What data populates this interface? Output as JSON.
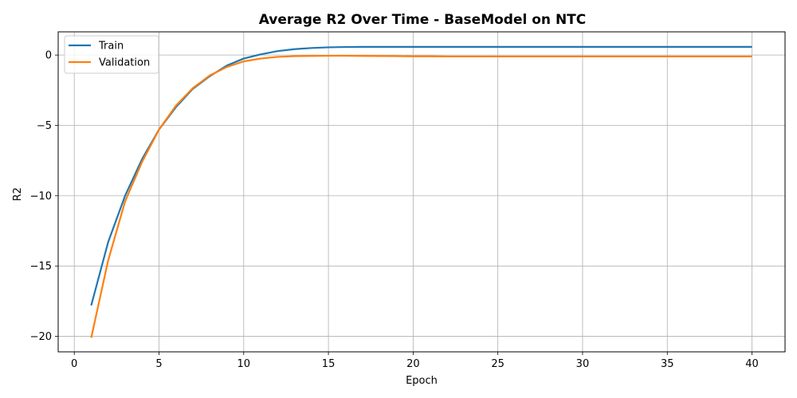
{
  "chart_data": {
    "type": "line",
    "title": "Average R2 Over Time - BaseModel on NTC",
    "xlabel": "Epoch",
    "ylabel": "R2",
    "xlim": [
      -0.95,
      41.95
    ],
    "ylim": [
      -21.1,
      1.65
    ],
    "xticks": [
      0,
      5,
      10,
      15,
      20,
      25,
      30,
      35,
      40
    ],
    "yticks": [
      -20,
      -15,
      -10,
      -5,
      0
    ],
    "grid": true,
    "legend_position": "top-left",
    "series": [
      {
        "name": "Train",
        "color": "#1f77b4",
        "x": [
          1,
          2,
          3,
          4,
          5,
          6,
          7,
          8,
          9,
          10,
          11,
          12,
          13,
          14,
          15,
          16,
          17,
          18,
          19,
          20,
          21,
          22,
          23,
          24,
          25,
          26,
          27,
          28,
          29,
          30,
          31,
          32,
          33,
          34,
          35,
          36,
          37,
          38,
          39,
          40
        ],
        "y": [
          -17.8,
          -13.3,
          -10.0,
          -7.4,
          -5.3,
          -3.7,
          -2.4,
          -1.5,
          -0.75,
          -0.25,
          0.05,
          0.28,
          0.42,
          0.5,
          0.55,
          0.57,
          0.58,
          0.58,
          0.58,
          0.58,
          0.58,
          0.58,
          0.58,
          0.58,
          0.58,
          0.58,
          0.58,
          0.58,
          0.58,
          0.58,
          0.58,
          0.58,
          0.58,
          0.58,
          0.58,
          0.58,
          0.58,
          0.58,
          0.58,
          0.58
        ]
      },
      {
        "name": "Validation",
        "color": "#ff7f0e",
        "x": [
          1,
          2,
          3,
          4,
          5,
          6,
          7,
          8,
          9,
          10,
          11,
          12,
          13,
          14,
          15,
          16,
          17,
          18,
          19,
          20,
          21,
          22,
          23,
          24,
          25,
          26,
          27,
          28,
          29,
          30,
          31,
          32,
          33,
          34,
          35,
          36,
          37,
          38,
          39,
          40
        ],
        "y": [
          -20.1,
          -14.6,
          -10.4,
          -7.6,
          -5.3,
          -3.6,
          -2.35,
          -1.45,
          -0.85,
          -0.45,
          -0.25,
          -0.13,
          -0.08,
          -0.06,
          -0.05,
          -0.05,
          -0.06,
          -0.07,
          -0.08,
          -0.09,
          -0.09,
          -0.1,
          -0.1,
          -0.1,
          -0.1,
          -0.1,
          -0.1,
          -0.1,
          -0.1,
          -0.1,
          -0.1,
          -0.1,
          -0.1,
          -0.1,
          -0.1,
          -0.1,
          -0.1,
          -0.1,
          -0.1,
          -0.1
        ]
      }
    ]
  }
}
